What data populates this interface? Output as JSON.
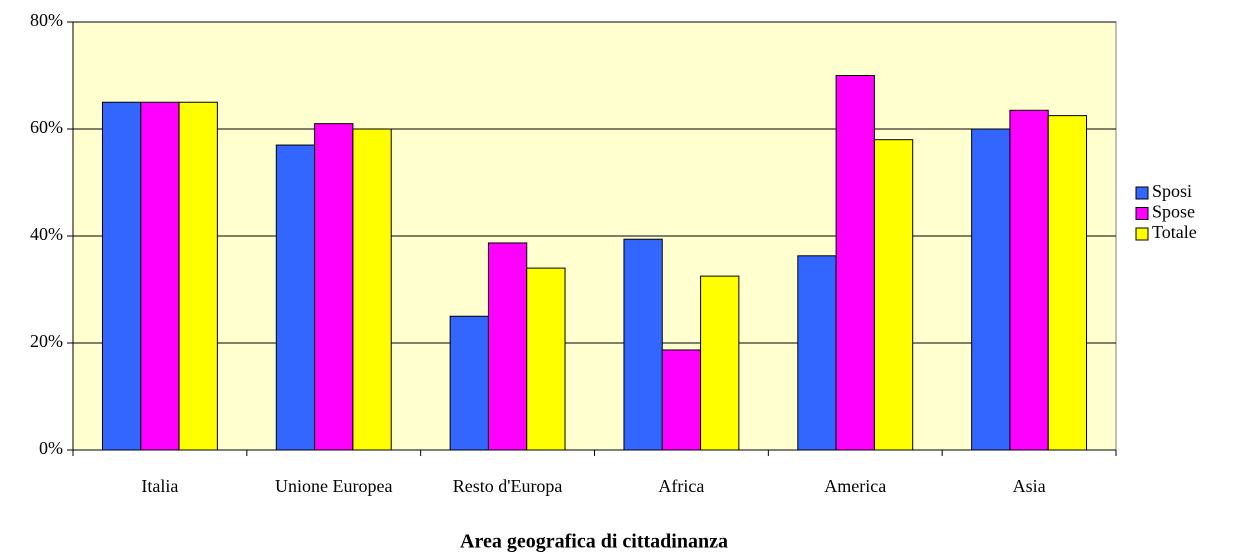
{
  "chart_data": {
    "type": "bar",
    "x_label": "Area geografica di cittadinanza",
    "categories": [
      "Italia",
      "Unione Europea",
      "Resto d'Europa",
      "Africa",
      "America",
      "Asia"
    ],
    "series": [
      {
        "name": "Sposi",
        "color": "#3366ff",
        "values": [
          65,
          57,
          25,
          39.4,
          36.3,
          60
        ]
      },
      {
        "name": "Spose",
        "color": "#ff00ff",
        "values": [
          65,
          61,
          38.7,
          18.7,
          70,
          63.5
        ]
      },
      {
        "name": "Totale",
        "color": "#ffff00",
        "values": [
          65,
          60,
          34,
          32.5,
          58,
          62.5
        ]
      }
    ],
    "ylim": [
      0,
      80
    ],
    "yticks": [
      {
        "value": 0,
        "label": "0%"
      },
      {
        "value": 20,
        "label": "20%"
      },
      {
        "value": 40,
        "label": "40%"
      },
      {
        "value": 60,
        "label": "60%"
      },
      {
        "value": 80,
        "label": "80%"
      }
    ],
    "grid": true,
    "legend": "right",
    "plot_background": "#ffffd0"
  }
}
